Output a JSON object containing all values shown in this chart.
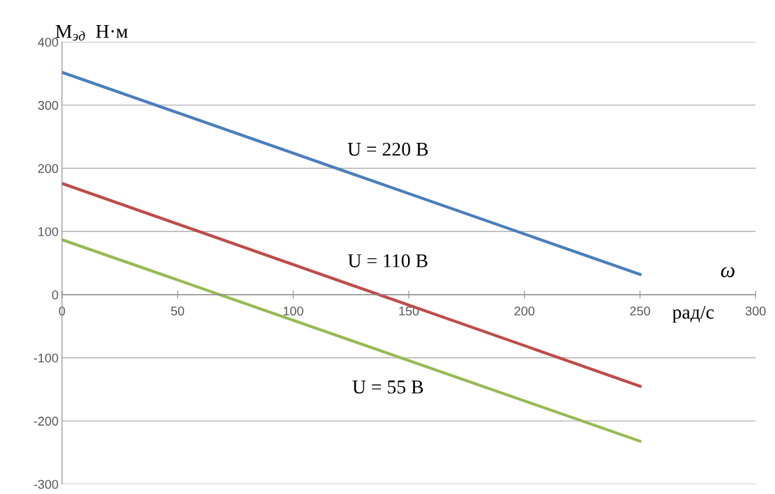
{
  "chart_data": {
    "type": "line",
    "ylabel": "M$_{эд}$  Н·м",
    "xlabel": "рад/с",
    "annotations": [
      "ω"
    ],
    "xlim": [
      0,
      300
    ],
    "xticks": [
      0,
      50,
      100,
      150,
      200,
      250,
      300
    ],
    "ylim": [
      -300,
      400
    ],
    "yticks": [
      -300,
      -200,
      -100,
      0,
      100,
      200,
      300,
      400
    ],
    "grid": "y",
    "legend": false,
    "marker": "none",
    "line_style": "solid",
    "x": [
      0,
      250
    ],
    "series": [
      {
        "name": "U = 220 В",
        "color": "#4a7ebb",
        "values": [
          352,
          32
        ]
      },
      {
        "name": "U = 110 В",
        "color": "#be4b48",
        "values": [
          176,
          -145
        ]
      },
      {
        "name": "U = 55 В",
        "color": "#98b954",
        "values": [
          87,
          -232
        ]
      }
    ]
  }
}
